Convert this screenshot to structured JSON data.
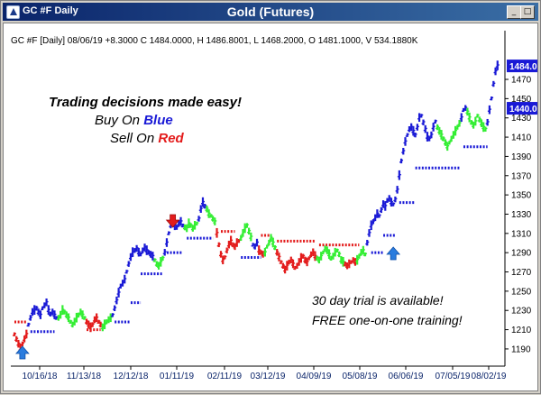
{
  "window": {
    "tab_title": "GC #F Daily",
    "title": "Gold (Futures)",
    "buttons": {
      "minimize": "_",
      "maximize": "□",
      "close": "×"
    }
  },
  "chart_data": {
    "type": "candlestick",
    "info_line": "GC #F [Daily] 08/06/19 +8.3000 C 1484.0000, H 1486.8001, L 1468.2000, O 1481.1000, V 534.1880K",
    "y_ticks": [
      1190,
      1210,
      1230,
      1250,
      1270,
      1290,
      1310,
      1330,
      1350,
      1370,
      1390,
      1410,
      1430,
      1450,
      1470
    ],
    "ylim": [
      1174,
      1500
    ],
    "x_ticks": [
      "10/16/18",
      "11/13/18",
      "12/12/18",
      "01/11/19",
      "02/11/19",
      "03/12/19",
      "04/09/19",
      "05/08/19",
      "06/06/19",
      "07/05/19",
      "08/02/19"
    ],
    "price_labels": [
      {
        "value": 1484,
        "text": "1484.0"
      },
      {
        "value": 1440,
        "text": "1440.0"
      }
    ],
    "annotations": {
      "line1": "Trading decisions made easy!",
      "buy_prefix": "Buy On ",
      "buy_word": "Blue",
      "sell_prefix": "Sell On ",
      "sell_word": "Red",
      "trial_line1": "30 day trial is available!",
      "trial_line2": "FREE one-on-one training!"
    },
    "colors": {
      "buy": "#1a1ad6",
      "neutral": "#33ee33",
      "sell": "#e31b1b",
      "stop": "#1a1ad6",
      "stop_sell": "#e31b1b",
      "arrow": "#2a7cde"
    },
    "signals": [
      {
        "x_index": 4,
        "type": "buy-arrow"
      },
      {
        "x_index": 79,
        "type": "sell-arrow"
      },
      {
        "x_index": 189,
        "type": "buy-arrow"
      }
    ],
    "segments": [
      {
        "color": "sell",
        "start": 0,
        "values": [
          1205,
          1200,
          1195,
          1190,
          1195,
          1200,
          1205
        ]
      },
      {
        "color": "buy",
        "start": 7,
        "values": [
          1215,
          1222,
          1228,
          1230,
          1232,
          1228,
          1225,
          1232,
          1235,
          1238,
          1230,
          1226,
          1228,
          1225,
          1222
        ]
      },
      {
        "color": "neutral",
        "start": 22,
        "values": [
          1222,
          1225,
          1230,
          1228,
          1225,
          1222,
          1218,
          1215,
          1218,
          1222,
          1225,
          1228,
          1225,
          1222
        ]
      },
      {
        "color": "sell",
        "start": 36,
        "values": [
          1218,
          1215,
          1212,
          1215,
          1220,
          1222,
          1218,
          1215
        ]
      },
      {
        "color": "neutral",
        "start": 44,
        "values": [
          1212,
          1215,
          1218,
          1220,
          1222
        ]
      },
      {
        "color": "buy",
        "start": 49,
        "values": [
          1225,
          1232,
          1240,
          1248,
          1255,
          1258,
          1262,
          1270,
          1278,
          1285,
          1290,
          1292,
          1294,
          1290,
          1288,
          1292,
          1295,
          1292,
          1290,
          1288,
          1286
        ]
      },
      {
        "color": "neutral",
        "start": 70,
        "values": [
          1282,
          1278,
          1276,
          1280,
          1284
        ]
      },
      {
        "color": "buy",
        "start": 75,
        "values": [
          1290,
          1300,
          1310,
          1318,
          1322,
          1318,
          1316,
          1320,
          1322,
          1318
        ]
      },
      {
        "color": "neutral",
        "start": 85,
        "values": [
          1316,
          1315,
          1320,
          1318,
          1315,
          1318,
          1320
        ]
      },
      {
        "color": "buy",
        "start": 92,
        "values": [
          1325,
          1335,
          1342,
          1338
        ]
      },
      {
        "color": "neutral",
        "start": 96,
        "values": [
          1335,
          1330,
          1328,
          1325,
          1322
        ]
      },
      {
        "color": "sell",
        "start": 101,
        "values": [
          1310,
          1298,
          1288,
          1282,
          1285,
          1292,
          1298,
          1302,
          1298,
          1296,
          1300,
          1302
        ]
      },
      {
        "color": "neutral",
        "start": 113,
        "values": [
          1305,
          1310,
          1315,
          1318,
          1312,
          1306
        ]
      },
      {
        "color": "buy",
        "start": 119,
        "values": [
          1298,
          1296,
          1300
        ]
      },
      {
        "color": "sell",
        "start": 122,
        "values": [
          1292,
          1290,
          1288
        ]
      },
      {
        "color": "neutral",
        "start": 125,
        "values": [
          1290,
          1296,
          1300,
          1305,
          1300,
          1295
        ]
      },
      {
        "color": "sell",
        "start": 131,
        "values": [
          1290,
          1285,
          1280,
          1276,
          1272,
          1276,
          1280,
          1282,
          1278,
          1274,
          1276,
          1280,
          1284,
          1286,
          1282,
          1280,
          1284,
          1288,
          1290,
          1286
        ]
      },
      {
        "color": "neutral",
        "start": 151,
        "values": [
          1284,
          1282,
          1286,
          1290,
          1294,
          1292,
          1288,
          1284,
          1286,
          1290,
          1292,
          1288,
          1282,
          1280
        ]
      },
      {
        "color": "sell",
        "start": 165,
        "values": [
          1278,
          1276,
          1278,
          1280,
          1282,
          1280
        ]
      },
      {
        "color": "neutral",
        "start": 171,
        "values": [
          1282,
          1286,
          1290,
          1292,
          1288
        ]
      },
      {
        "color": "buy",
        "start": 176,
        "values": [
          1300,
          1310,
          1318,
          1322,
          1326,
          1330,
          1328,
          1334,
          1340,
          1338,
          1344,
          1346,
          1342,
          1340,
          1345
        ]
      },
      {
        "color": "buy",
        "start": 191,
        "values": [
          1355,
          1370,
          1385,
          1395,
          1405,
          1412,
          1418,
          1420,
          1416,
          1412,
          1420,
          1430,
          1432,
          1425,
          1418,
          1410,
          1408,
          1412,
          1420,
          1426
        ]
      },
      {
        "color": "neutral",
        "start": 211,
        "values": [
          1420,
          1416,
          1412,
          1408,
          1404,
          1400,
          1404,
          1408,
          1412,
          1416,
          1420,
          1424
        ]
      },
      {
        "color": "buy",
        "start": 223,
        "values": [
          1430,
          1438,
          1440
        ]
      },
      {
        "color": "neutral",
        "start": 226,
        "values": [
          1436,
          1430,
          1425,
          1422,
          1426,
          1432,
          1428,
          1424,
          1420,
          1418
        ]
      },
      {
        "color": "buy",
        "start": 236,
        "values": [
          1425,
          1438,
          1450,
          1465,
          1478,
          1484
        ]
      }
    ],
    "stops": [
      {
        "color": "sell",
        "y": 1218,
        "from": 0,
        "to": 6
      },
      {
        "color": "stop",
        "y": 1208,
        "from": 8,
        "to": 20
      },
      {
        "color": "sell",
        "y": 1210,
        "from": 36,
        "to": 43
      },
      {
        "color": "stop",
        "y": 1218,
        "from": 50,
        "to": 58
      },
      {
        "color": "stop",
        "y": 1238,
        "from": 58,
        "to": 63
      },
      {
        "color": "stop",
        "y": 1268,
        "from": 63,
        "to": 74
      },
      {
        "color": "stop",
        "y": 1290,
        "from": 76,
        "to": 84
      },
      {
        "color": "stop",
        "y": 1305,
        "from": 86,
        "to": 99
      },
      {
        "color": "sell",
        "y": 1312,
        "from": 103,
        "to": 110
      },
      {
        "color": "stop",
        "y": 1285,
        "from": 113,
        "to": 123
      },
      {
        "color": "sell",
        "y": 1308,
        "from": 123,
        "to": 128
      },
      {
        "color": "sell",
        "y": 1302,
        "from": 131,
        "to": 150
      },
      {
        "color": "sell",
        "y": 1298,
        "from": 152,
        "to": 172
      },
      {
        "color": "stop",
        "y": 1290,
        "from": 178,
        "to": 184
      },
      {
        "color": "stop",
        "y": 1308,
        "from": 184,
        "to": 190
      },
      {
        "color": "stop",
        "y": 1342,
        "from": 192,
        "to": 200
      },
      {
        "color": "stop",
        "y": 1378,
        "from": 200,
        "to": 222
      },
      {
        "color": "stop",
        "y": 1400,
        "from": 224,
        "to": 236
      }
    ],
    "n_bars": 243
  }
}
